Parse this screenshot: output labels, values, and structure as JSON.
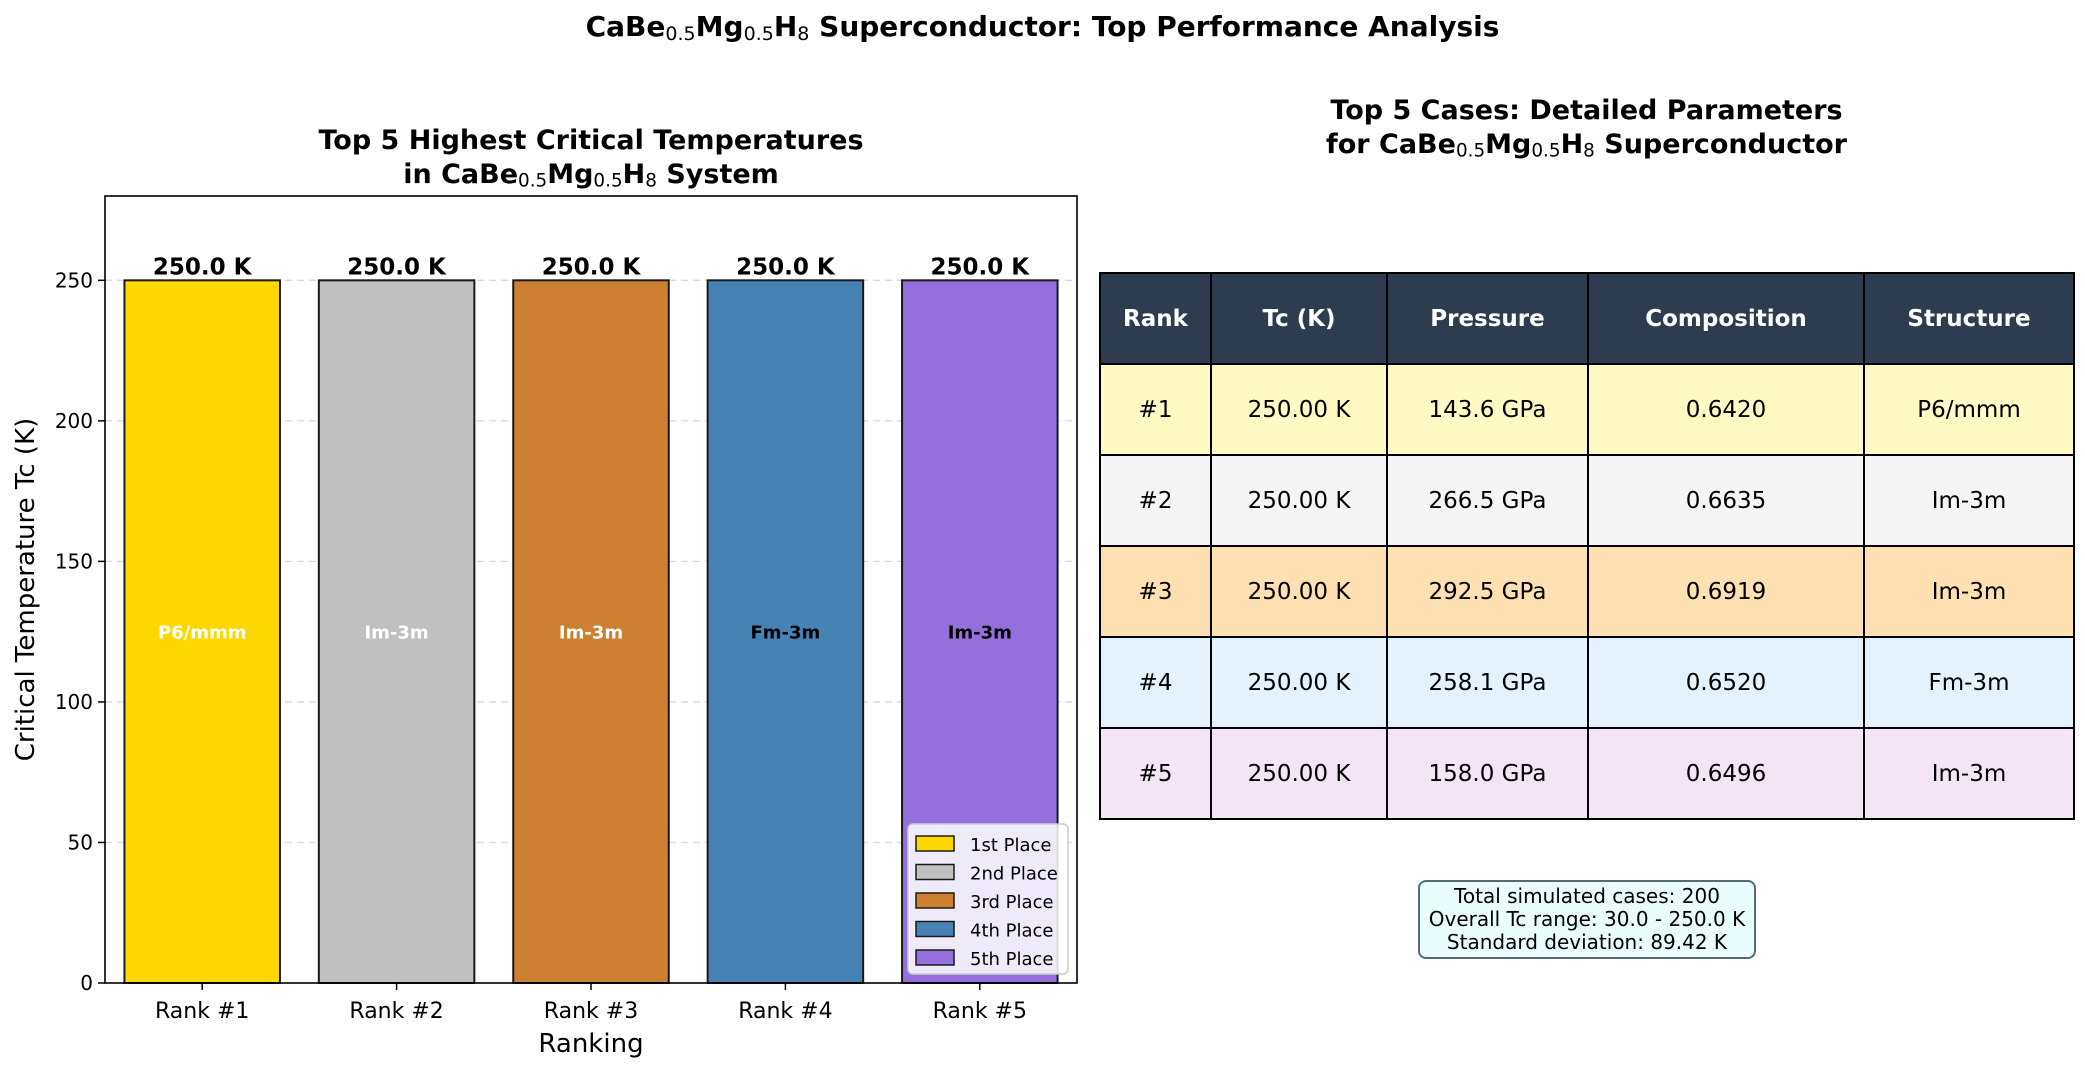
{
  "figure": {
    "title_parts": [
      "CaBe",
      "0.5",
      "Mg",
      "0.5",
      "H",
      "8",
      " Superconductor: Top Performance Analysis"
    ]
  },
  "chart_data": {
    "type": "bar",
    "title_line1": "Top 5 Highest Critical Temperatures",
    "title_line2_parts": [
      "in CaBe",
      "0.5",
      "Mg",
      "0.5",
      "H",
      "8",
      " System"
    ],
    "xlabel": "Ranking",
    "ylabel": "Critical Temperature Tc (K)",
    "ylim": [
      0,
      280
    ],
    "yticks": [
      0,
      50,
      100,
      150,
      200,
      250
    ],
    "grid": "y-dashed",
    "categories": [
      "Rank #1",
      "Rank #2",
      "Rank #3",
      "Rank #4",
      "Rank #5"
    ],
    "values": [
      250.0,
      250.0,
      250.0,
      250.0,
      250.0
    ],
    "value_labels": [
      "250.0 K",
      "250.0 K",
      "250.0 K",
      "250.0 K",
      "250.0 K"
    ],
    "bar_labels": [
      "P6/mmm",
      "Im-3m",
      "Im-3m",
      "Fm-3m",
      "Im-3m"
    ],
    "bar_label_colors": [
      "#ffffff",
      "#ffffff",
      "#ffffff",
      "#000000",
      "#000000"
    ],
    "colors": [
      "#ffd700",
      "#c0c0c0",
      "#cd7f32",
      "#4682b4",
      "#9370db"
    ],
    "legend": [
      "1st Place",
      "2nd Place",
      "3rd Place",
      "4th Place",
      "5th Place"
    ],
    "legend_position": "lower-right"
  },
  "table": {
    "title_line1": "Top 5 Cases: Detailed Parameters",
    "title_line2_parts": [
      "for CaBe",
      "0.5",
      "Mg",
      "0.5",
      "H",
      "8",
      " Superconductor"
    ],
    "headers": [
      "Rank",
      "Tc (K)",
      "Pressure",
      "Composition",
      "Structure"
    ],
    "rows": [
      [
        "#1",
        "250.00 K",
        "143.6 GPa",
        "0.6420",
        "P6/mmm"
      ],
      [
        "#2",
        "250.00 K",
        "266.5 GPa",
        "0.6635",
        "Im-3m"
      ],
      [
        "#3",
        "250.00 K",
        "292.5 GPa",
        "0.6919",
        "Im-3m"
      ],
      [
        "#4",
        "250.00 K",
        "258.1 GPa",
        "0.6520",
        "Fm-3m"
      ],
      [
        "#5",
        "250.00 K",
        "158.0 GPa",
        "0.6496",
        "Im-3m"
      ]
    ],
    "row_colors": [
      "#fff9c4",
      "#f5f5f5",
      "#ffe0b2",
      "#e3f2fd",
      "#f3e5f5"
    ],
    "header_color": "#2e3c50"
  },
  "stats": {
    "total": "Total simulated cases: 200",
    "range": "Overall Tc range: 30.0 - 250.0 K",
    "std": "Standard deviation: 89.42 K"
  }
}
